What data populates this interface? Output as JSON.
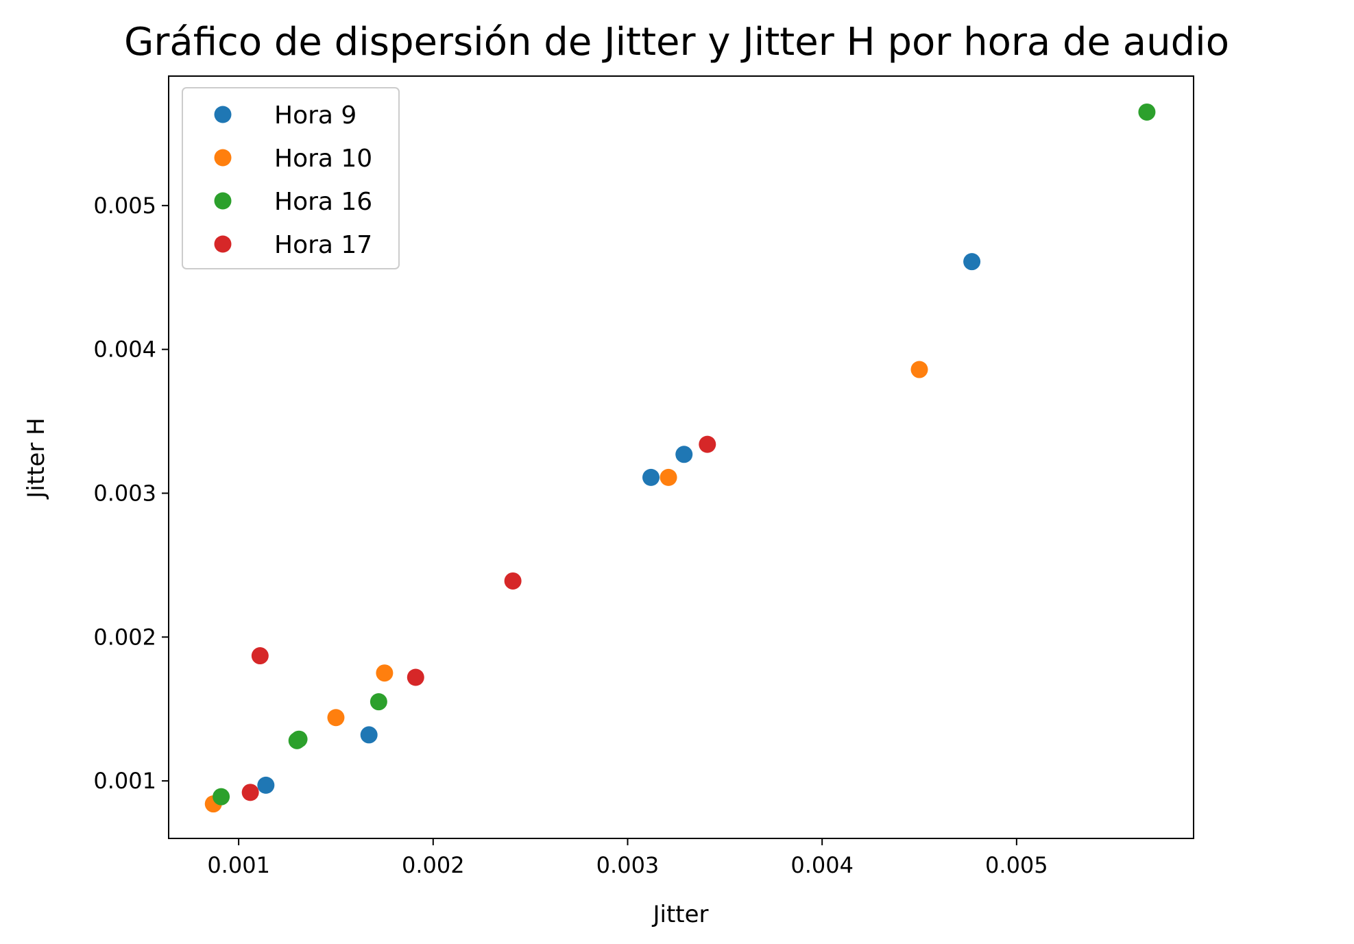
{
  "chart_data": {
    "type": "scatter",
    "title": "Gráfico de dispersión de Jitter y Jitter H por hora de audio",
    "xlabel": "Jitter",
    "ylabel": "Jitter H",
    "xlim": [
      0.00064,
      0.00591
    ],
    "ylim": [
      0.0006,
      0.0059
    ],
    "xticks": [
      "0.001",
      "0.002",
      "0.003",
      "0.004",
      "0.005"
    ],
    "yticks": [
      "0.001",
      "0.002",
      "0.003",
      "0.004",
      "0.005"
    ],
    "xtick_values": [
      0.001,
      0.002,
      0.003,
      0.004,
      0.005
    ],
    "ytick_values": [
      0.001,
      0.002,
      0.003,
      0.004,
      0.005
    ],
    "grid": false,
    "legend_position": "top-left",
    "series": [
      {
        "name": "Hora 9",
        "color": "#1f77b4",
        "points": [
          [
            0.00114,
            0.00097
          ],
          [
            0.00167,
            0.00132
          ],
          [
            0.00312,
            0.00311
          ],
          [
            0.00329,
            0.00327
          ],
          [
            0.00477,
            0.00461
          ]
        ]
      },
      {
        "name": "Hora 10",
        "color": "#ff7f0e",
        "points": [
          [
            0.00087,
            0.00084
          ],
          [
            0.0015,
            0.00144
          ],
          [
            0.00175,
            0.00175
          ],
          [
            0.00321,
            0.00311
          ],
          [
            0.0045,
            0.00386
          ]
        ]
      },
      {
        "name": "Hora 16",
        "color": "#2ca02c",
        "points": [
          [
            0.00091,
            0.00089
          ],
          [
            0.0013,
            0.00128
          ],
          [
            0.00131,
            0.00129
          ],
          [
            0.00172,
            0.00155
          ],
          [
            0.00567,
            0.00565
          ]
        ]
      },
      {
        "name": "Hora 17",
        "color": "#d62728",
        "points": [
          [
            0.00106,
            0.00092
          ],
          [
            0.00111,
            0.00187
          ],
          [
            0.00191,
            0.00172
          ],
          [
            0.00241,
            0.00239
          ],
          [
            0.00341,
            0.00334
          ]
        ]
      }
    ]
  }
}
